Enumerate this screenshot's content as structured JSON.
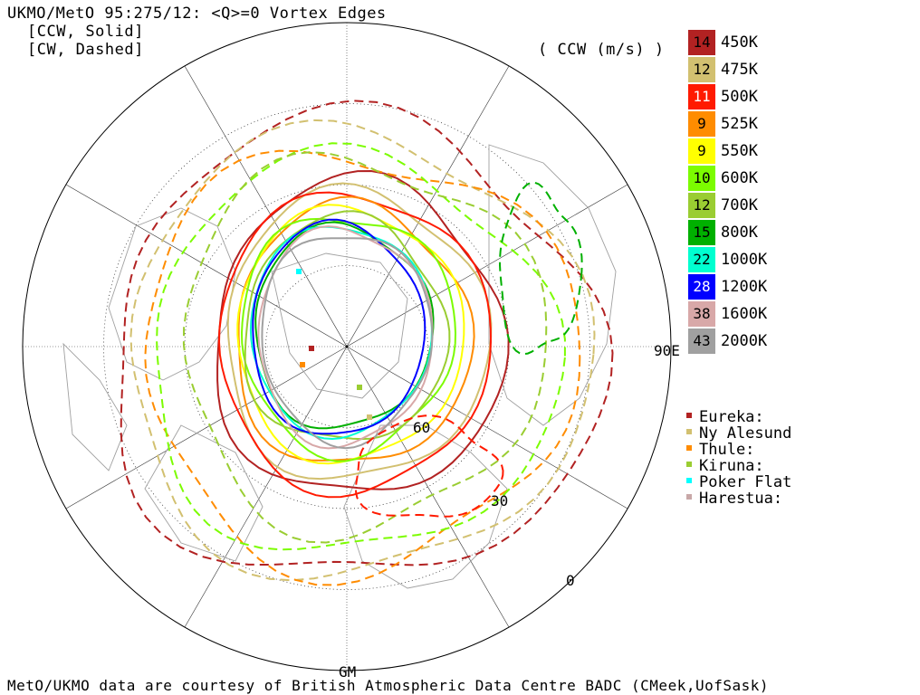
{
  "header": {
    "title": "UKMO/MetO 95:275/12: <Q>=0 Vortex Edges",
    "line2": "[CCW, Solid]",
    "line3": "[CW, Dashed]",
    "units": "( CCW (m/s) )"
  },
  "legend_levels": [
    {
      "value": "14",
      "label": "450K",
      "color": "#b22222",
      "text_color": "#000000"
    },
    {
      "value": "12",
      "label": "475K",
      "color": "#d2c070",
      "text_color": "#000000"
    },
    {
      "value": "11",
      "label": "500K",
      "color": "#ff1a00",
      "text_color": "#ffffff"
    },
    {
      "value": "9",
      "label": "525K",
      "color": "#ff8c00",
      "text_color": "#000000"
    },
    {
      "value": "9",
      "label": "550K",
      "color": "#ffff00",
      "text_color": "#000000"
    },
    {
      "value": "10",
      "label": "600K",
      "color": "#7cfc00",
      "text_color": "#000000"
    },
    {
      "value": "12",
      "label": "700K",
      "color": "#9acd32",
      "text_color": "#000000"
    },
    {
      "value": "15",
      "label": "800K",
      "color": "#00b000",
      "text_color": "#000000"
    },
    {
      "value": "22",
      "label": "1000K",
      "color": "#00ffd0",
      "text_color": "#000000"
    },
    {
      "value": "28",
      "label": "1200K",
      "color": "#0000ff",
      "text_color": "#ffffff"
    },
    {
      "value": "38",
      "label": "1600K",
      "color": "#d8a8a8",
      "text_color": "#000000"
    },
    {
      "value": "43",
      "label": "2000K",
      "color": "#a0a0a0",
      "text_color": "#000000"
    }
  ],
  "stations": [
    {
      "name": "Eureka:",
      "color": "#b22222"
    },
    {
      "name": "Ny Alesund",
      "color": "#d2c070"
    },
    {
      "name": "Thule:",
      "color": "#ff8c00"
    },
    {
      "name": "Kiruna:",
      "color": "#9acd32"
    },
    {
      "name": "Poker Flat",
      "color": "#00ffff"
    },
    {
      "name": "Harestua:",
      "color": "#c8a8a8"
    }
  ],
  "map_labels": {
    "lon_90e": "90E",
    "lat_60": "60",
    "lat_30": "30",
    "lat_0": "0",
    "gm": "GM"
  },
  "footer": "MetO/UKMO data are courtesy of British Atmospheric Data Centre BADC (CMeek,UofSask)"
}
